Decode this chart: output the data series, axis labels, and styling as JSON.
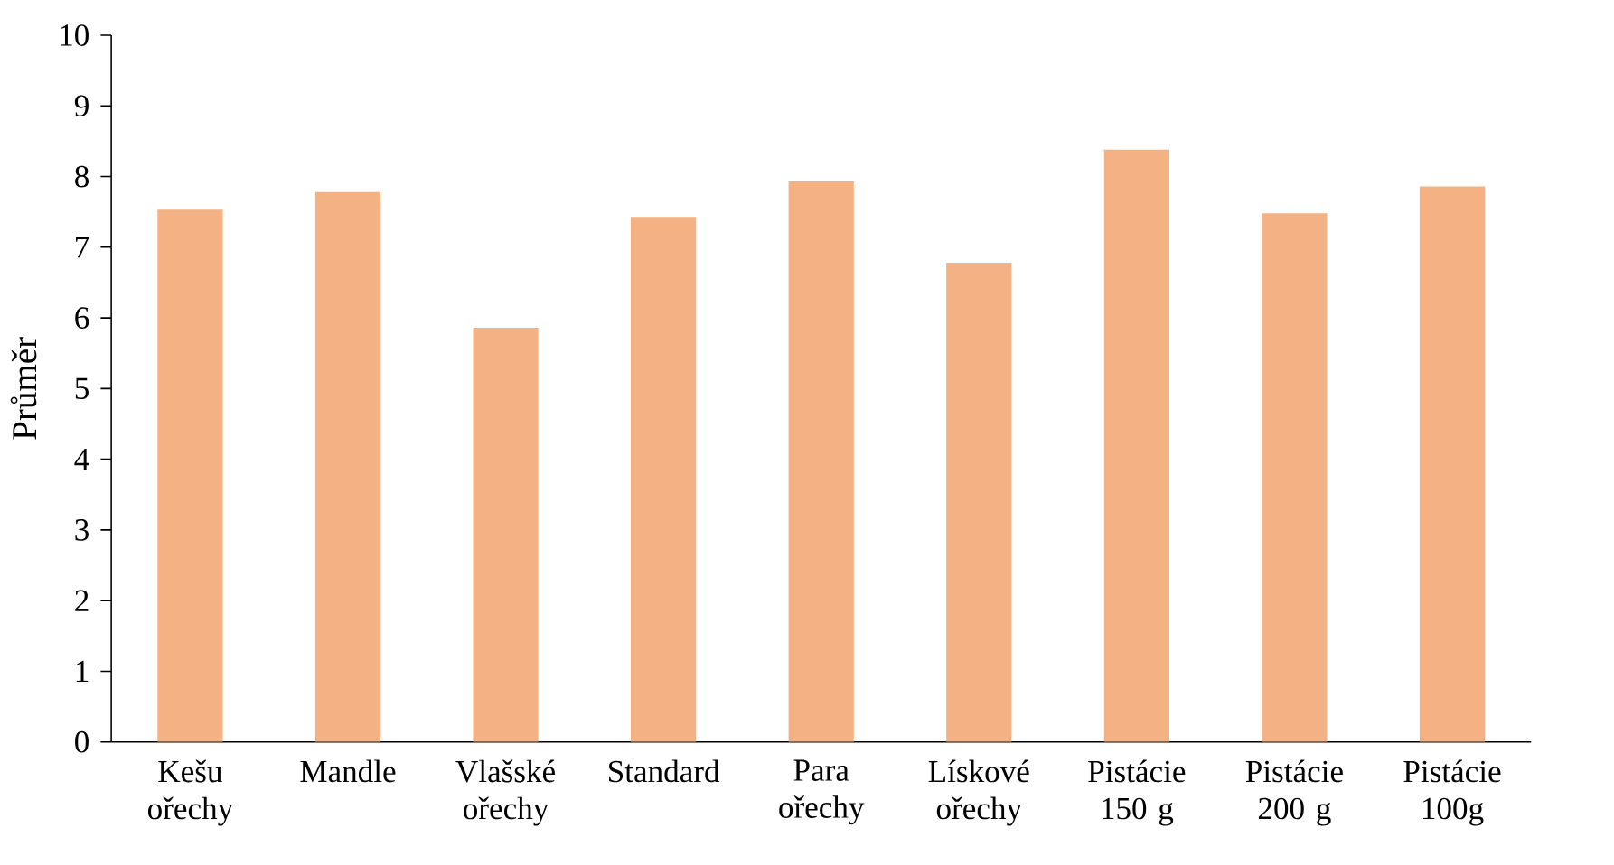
{
  "chart_data": {
    "type": "bar",
    "ylabel": "Průměr",
    "categories": [
      "Kešu ořechy",
      "Mandle",
      "Vlašské ořechy",
      "Standard",
      "Para ořechy",
      "Lískové ořechy",
      "Pistácie 150 g",
      "Pistácie 200 g",
      "Pistácie 100g"
    ],
    "values": [
      7.53,
      7.78,
      5.86,
      7.43,
      7.93,
      6.78,
      8.38,
      7.48,
      7.86
    ],
    "color": "#f4b183",
    "ylim": [
      0,
      10
    ],
    "yticks": [
      0,
      1,
      2,
      3,
      4,
      5,
      6,
      7,
      8,
      9,
      10
    ]
  }
}
